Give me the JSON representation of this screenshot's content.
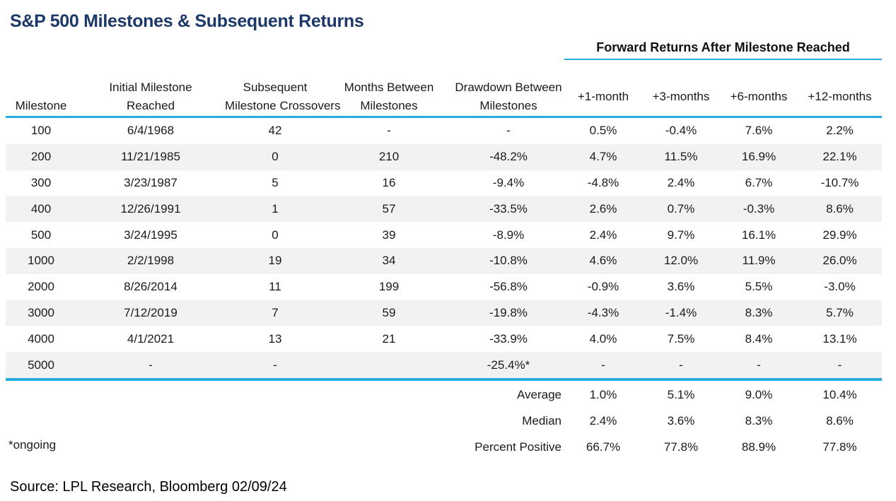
{
  "chart_data": {
    "type": "table",
    "title": "S&P 500 Milestones & Subsequent Returns",
    "group_header": "Forward Returns After Milestone Reached",
    "group_header_span_columns": [
      "+1-month",
      "+3-months",
      "+6-months",
      "+12-months"
    ],
    "columns": [
      {
        "label": "Milestone",
        "lines": [
          "Milestone"
        ]
      },
      {
        "label": "Initial Milestone Reached",
        "lines": [
          "Initial Milestone",
          "Reached"
        ]
      },
      {
        "label": "Subsequent Milestone Crossovers",
        "lines": [
          "Subsequent",
          "Milestone Crossovers"
        ]
      },
      {
        "label": "Months Between Milestones",
        "lines": [
          "Months Between",
          "Milestones"
        ]
      },
      {
        "label": "Drawdown Between Milestones",
        "lines": [
          "Drawdown Between",
          "Milestones"
        ]
      },
      {
        "label": "+1-month",
        "lines": [
          "+1-month"
        ]
      },
      {
        "label": "+3-months",
        "lines": [
          "+3-months"
        ]
      },
      {
        "label": "+6-months",
        "lines": [
          "+6-months"
        ]
      },
      {
        "label": "+12-months",
        "lines": [
          "+12-months"
        ]
      }
    ],
    "rows": [
      [
        "100",
        "6/4/1968",
        "42",
        "-",
        "-",
        "0.5%",
        "-0.4%",
        "7.6%",
        "2.2%"
      ],
      [
        "200",
        "11/21/1985",
        "0",
        "210",
        "-48.2%",
        "4.7%",
        "11.5%",
        "16.9%",
        "22.1%"
      ],
      [
        "300",
        "3/23/1987",
        "5",
        "16",
        "-9.4%",
        "-4.8%",
        "2.4%",
        "6.7%",
        "-10.7%"
      ],
      [
        "400",
        "12/26/1991",
        "1",
        "57",
        "-33.5%",
        "2.6%",
        "0.7%",
        "-0.3%",
        "8.6%"
      ],
      [
        "500",
        "3/24/1995",
        "0",
        "39",
        "-8.9%",
        "2.4%",
        "9.7%",
        "16.1%",
        "29.9%"
      ],
      [
        "1000",
        "2/2/1998",
        "19",
        "34",
        "-10.8%",
        "4.6%",
        "12.0%",
        "11.9%",
        "26.0%"
      ],
      [
        "2000",
        "8/26/2014",
        "11",
        "199",
        "-56.8%",
        "-0.9%",
        "3.6%",
        "5.5%",
        "-3.0%"
      ],
      [
        "3000",
        "7/12/2019",
        "7",
        "59",
        "-19.8%",
        "-4.3%",
        "-1.4%",
        "8.3%",
        "5.7%"
      ],
      [
        "4000",
        "4/1/2021",
        "13",
        "21",
        "-33.9%",
        "4.0%",
        "7.5%",
        "8.4%",
        "13.1%"
      ],
      [
        "5000",
        "-",
        "-",
        "",
        "-25.4%*",
        "-",
        "-",
        "-",
        "-"
      ]
    ],
    "summary_rows": [
      {
        "label": "Average",
        "values": [
          "1.0%",
          "5.1%",
          "9.0%",
          "10.4%"
        ]
      },
      {
        "label": "Median",
        "values": [
          "2.4%",
          "3.6%",
          "8.3%",
          "8.6%"
        ]
      },
      {
        "label": "Percent Positive",
        "values": [
          "66.7%",
          "77.8%",
          "88.9%",
          "77.8%"
        ]
      }
    ],
    "footnote": "*ongoing",
    "grid": "row-stripes",
    "legend_position": "none"
  },
  "source_line": "Source: LPL Research, Bloomberg 02/09/24",
  "colors": {
    "title_navy": "#1c3869",
    "accent_cyan": "#29abe2",
    "row_stripe": "#f2f2f2",
    "text": "#1a1a1a"
  }
}
